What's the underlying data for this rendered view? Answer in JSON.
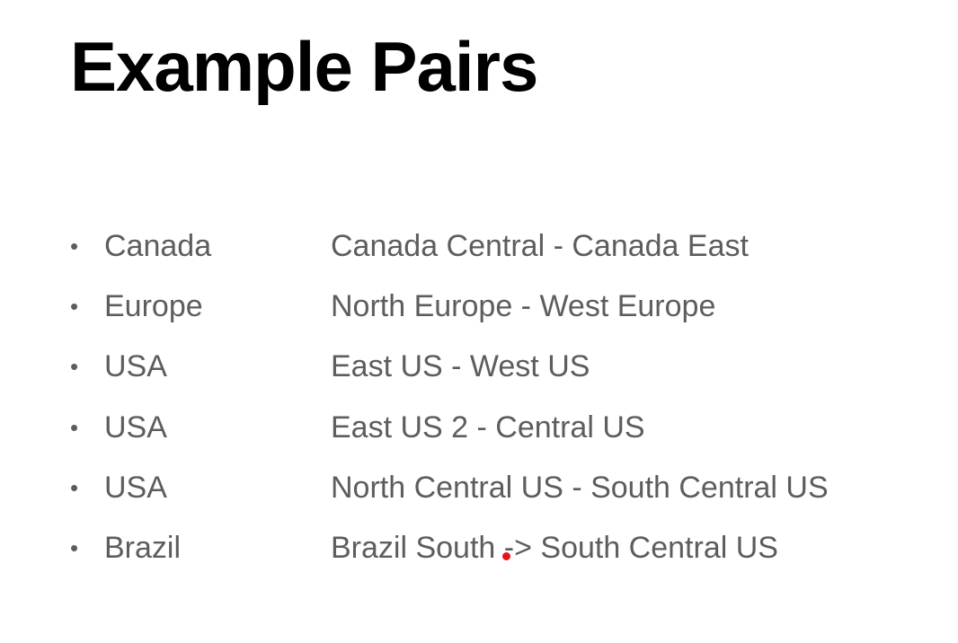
{
  "slide": {
    "title": "Example Pairs",
    "pairs": [
      {
        "region": "Canada",
        "pairing": "Canada Central - Canada East"
      },
      {
        "region": "Europe",
        "pairing": "North Europe - West Europe"
      },
      {
        "region": "USA",
        "pairing": "East US - West US"
      },
      {
        "region": "USA",
        "pairing": "East US 2 - Central US"
      },
      {
        "region": "USA",
        "pairing": "North Central US - South Central US"
      },
      {
        "region": "Brazil",
        "pairing": "Brazil South -> South Central US"
      }
    ],
    "bullet_glyph": "•",
    "pointer_color": "#e8141c"
  }
}
